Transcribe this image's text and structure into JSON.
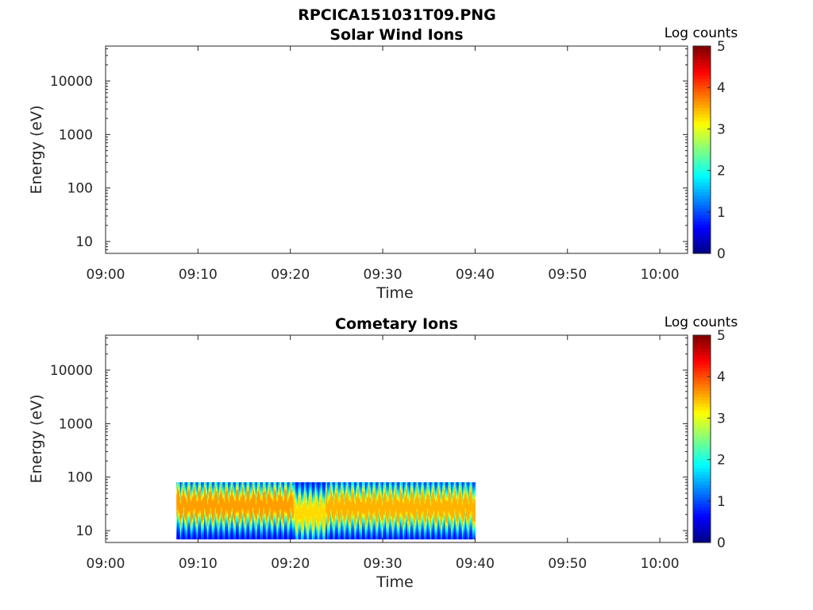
{
  "figure": {
    "title": "RPCICA151031T09.PNG"
  },
  "chart_data": [
    {
      "type": "heatmap",
      "title": "Solar Wind Ions",
      "xlabel": "Time",
      "ylabel": "Energy (eV)",
      "x_ticks": [
        "09:00",
        "09:10",
        "09:20",
        "09:30",
        "09:40",
        "09:50",
        "10:00"
      ],
      "x_range": [
        "09:00",
        "10:03"
      ],
      "y_scale": "log",
      "y_ticks": [
        "10",
        "100",
        "1000",
        "10000"
      ],
      "y_range": [
        6,
        45000
      ],
      "colorbar": {
        "label": "Log counts",
        "ticks": [
          "0",
          "1",
          "2",
          "3",
          "4",
          "5"
        ],
        "range": [
          0,
          5
        ],
        "colormap": "jet"
      },
      "data_blocks": []
    },
    {
      "type": "heatmap",
      "title": "Cometary Ions",
      "xlabel": "Time",
      "ylabel": "Energy (eV)",
      "x_ticks": [
        "09:00",
        "09:10",
        "09:20",
        "09:30",
        "09:40",
        "09:50",
        "10:00"
      ],
      "x_range": [
        "09:00",
        "10:03"
      ],
      "y_scale": "log",
      "y_ticks": [
        "10",
        "100",
        "1000",
        "10000"
      ],
      "y_range": [
        6,
        45000
      ],
      "colorbar": {
        "label": "Log counts",
        "ticks": [
          "0",
          "1",
          "2",
          "3",
          "4",
          "5"
        ],
        "range": [
          0,
          5
        ],
        "colormap": "jet"
      },
      "data_blocks": [
        {
          "t_start": "09:07:40",
          "t_end": "09:20:20",
          "e_min": 7,
          "e_max": 80,
          "peak_log_counts": 3.6,
          "peak_energy_ev": 30
        },
        {
          "t_start": "09:20:20",
          "t_end": "09:23:50",
          "e_min": 7,
          "e_max": 80,
          "peak_log_counts": 3.3,
          "peak_energy_ev": 22
        },
        {
          "t_start": "09:23:50",
          "t_end": "09:40:00",
          "e_min": 7,
          "e_max": 80,
          "peak_log_counts": 3.5,
          "peak_energy_ev": 28
        }
      ]
    }
  ]
}
